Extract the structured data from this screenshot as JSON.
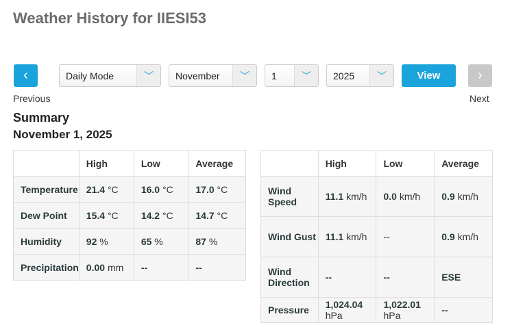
{
  "title": "Weather History for IIESI53",
  "controls": {
    "mode": "Daily Mode",
    "month": "November",
    "day": "1",
    "year": "2025",
    "view": "View",
    "previous": "Previous",
    "next": "Next"
  },
  "summary": {
    "heading": "Summary",
    "date": "November 1, 2025"
  },
  "colors": {
    "accent": "#1ba4dc",
    "disabled": "#c8c8c8"
  },
  "table1": {
    "headers": [
      "",
      "High",
      "Low",
      "Average"
    ],
    "rows": [
      {
        "label": "Temperature",
        "cells": [
          [
            "21.4",
            "°C"
          ],
          [
            "16.0",
            "°C"
          ],
          [
            "17.0",
            "°C"
          ]
        ]
      },
      {
        "label": "Dew Point",
        "cells": [
          [
            "15.4",
            "°C"
          ],
          [
            "14.2",
            "°C"
          ],
          [
            "14.7",
            "°C"
          ]
        ]
      },
      {
        "label": "Humidity",
        "cells": [
          [
            "92",
            "%"
          ],
          [
            "65",
            "%"
          ],
          [
            "87",
            "%"
          ]
        ]
      },
      {
        "label": "Precipitation",
        "cells": [
          [
            "0.00",
            "mm"
          ],
          [
            "--",
            ""
          ],
          [
            "--",
            ""
          ]
        ]
      }
    ]
  },
  "table2": {
    "headers": [
      "",
      "High",
      "Low",
      "Average"
    ],
    "rows": [
      {
        "label": "Wind Speed",
        "cells": [
          [
            "11.1",
            "km/h"
          ],
          [
            "0.0",
            "km/h"
          ],
          [
            "0.9",
            "km/h"
          ]
        ]
      },
      {
        "label": "Wind Gust",
        "cells": [
          [
            "11.1",
            "km/h"
          ],
          [
            "",
            "--"
          ],
          [
            "0.9",
            "km/h"
          ]
        ]
      },
      {
        "label": "Wind Direction",
        "cells": [
          [
            "--",
            ""
          ],
          [
            "--",
            ""
          ],
          [
            "ESE",
            ""
          ]
        ]
      },
      {
        "label": "Pressure",
        "cells": [
          [
            "1,024.04",
            "hPa"
          ],
          [
            "1,022.01",
            "hPa"
          ],
          [
            "--",
            ""
          ]
        ]
      }
    ]
  }
}
